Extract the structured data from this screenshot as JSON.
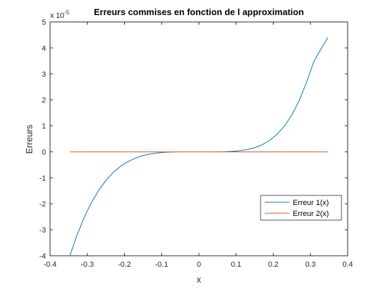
{
  "chart_data": {
    "type": "line",
    "title": "Erreurs commises en fonction de l approximation",
    "xlabel": "x",
    "ylabel": "Erreurs",
    "exponent_label": "x 10",
    "exponent_power": "-5",
    "xlim": [
      -0.4,
      0.4
    ],
    "ylim": [
      -4,
      5
    ],
    "xticks": [
      -0.4,
      -0.3,
      -0.2,
      -0.1,
      0,
      0.1,
      0.2,
      0.3,
      0.4
    ],
    "xtick_labels": [
      "-0.4",
      "-0.3",
      "-0.2",
      "-0.1",
      "0",
      "0.1",
      "0.2",
      "0.3",
      "0.4"
    ],
    "yticks": [
      -4,
      -3,
      -2,
      -1,
      0,
      1,
      2,
      3,
      4,
      5
    ],
    "ytick_labels": [
      "-4",
      "-3",
      "-2",
      "-1",
      "0",
      "1",
      "2",
      "3",
      "4",
      "5"
    ],
    "grid": false,
    "legend_position": "lower-right",
    "series": [
      {
        "name": "Erreur 1(x)",
        "color": "#0072BD",
        "x": [
          -0.3466,
          -0.33,
          -0.31,
          -0.29,
          -0.27,
          -0.25,
          -0.23,
          -0.21,
          -0.19,
          -0.17,
          -0.15,
          -0.13,
          -0.11,
          -0.09,
          -0.07,
          -0.05,
          -0.03,
          -0.01,
          0.01,
          0.03,
          0.05,
          0.07,
          0.09,
          0.11,
          0.13,
          0.15,
          0.17,
          0.19,
          0.21,
          0.23,
          0.25,
          0.27,
          0.29,
          0.31,
          0.33,
          0.3466
        ],
        "y": [
          -4.0,
          -3.3,
          -2.58,
          -1.98,
          -1.5,
          -1.1,
          -0.79,
          -0.55,
          -0.37,
          -0.24,
          -0.14,
          -0.08,
          -0.04,
          -0.016,
          -0.006,
          -0.0015,
          -0.0002,
          0.0,
          0.0,
          0.0002,
          0.0016,
          0.006,
          0.017,
          0.045,
          0.09,
          0.16,
          0.27,
          0.44,
          0.67,
          0.99,
          1.42,
          1.98,
          2.7,
          3.5,
          4.0,
          4.4
        ]
      },
      {
        "name": "Erreur 2(x)",
        "color": "#D95319",
        "x": [
          -0.3466,
          0.3466
        ],
        "y": [
          0,
          0
        ]
      }
    ]
  }
}
